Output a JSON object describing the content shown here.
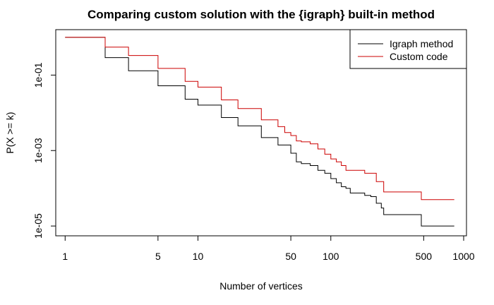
{
  "chart_data": {
    "type": "line",
    "title": "Comparing custom solution with the {igraph} built-in method",
    "xlabel": "Number of vertices",
    "ylabel": "P(X >= k)",
    "x_scale": "log",
    "y_scale": "log",
    "xlim": [
      0.85,
      1050
    ],
    "ylim": [
      5.5e-06,
      1.6
    ],
    "x_ticks": [
      {
        "value": 1,
        "label": "1"
      },
      {
        "value": 5,
        "label": "5"
      },
      {
        "value": 10,
        "label": "10"
      },
      {
        "value": 50,
        "label": "50"
      },
      {
        "value": 100,
        "label": "100"
      },
      {
        "value": 500,
        "label": "500"
      },
      {
        "value": 1000,
        "label": "1000"
      }
    ],
    "y_ticks": [
      {
        "value": 0.1,
        "label": "1e-01"
      },
      {
        "value": 0.001,
        "label": "1e-03"
      },
      {
        "value": 1e-05,
        "label": "1e-05"
      }
    ],
    "legend_position": "top-right",
    "grid": false,
    "series": [
      {
        "name": "Igraph method",
        "color": "#000000",
        "step": true,
        "points": [
          [
            1,
            1.0
          ],
          [
            2,
            0.29
          ],
          [
            3,
            0.13
          ],
          [
            5,
            0.052
          ],
          [
            8,
            0.023
          ],
          [
            10,
            0.016
          ],
          [
            15,
            0.0075
          ],
          [
            20,
            0.0045
          ],
          [
            30,
            0.0022
          ],
          [
            40,
            0.0014
          ],
          [
            50,
            0.00085
          ],
          [
            55,
            0.0005
          ],
          [
            60,
            0.00045
          ],
          [
            70,
            0.0004
          ],
          [
            80,
            0.0003
          ],
          [
            90,
            0.00025
          ],
          [
            100,
            0.00018
          ],
          [
            110,
            0.00014
          ],
          [
            120,
            0.00011
          ],
          [
            130,
            0.0001
          ],
          [
            140,
            7.5e-05
          ],
          [
            180,
            6.5e-05
          ],
          [
            200,
            6e-05
          ],
          [
            220,
            4e-05
          ],
          [
            240,
            3e-05
          ],
          [
            250,
            2e-05
          ],
          [
            480,
            1e-05
          ],
          [
            850,
            1e-05
          ]
        ]
      },
      {
        "name": "Custom code",
        "color": "#cc0000",
        "step": true,
        "points": [
          [
            1,
            1.0
          ],
          [
            2,
            0.55
          ],
          [
            3,
            0.33
          ],
          [
            5,
            0.15
          ],
          [
            8,
            0.068
          ],
          [
            10,
            0.048
          ],
          [
            15,
            0.022
          ],
          [
            20,
            0.013
          ],
          [
            30,
            0.0065
          ],
          [
            40,
            0.0043
          ],
          [
            45,
            0.003
          ],
          [
            50,
            0.0025
          ],
          [
            55,
            0.0018
          ],
          [
            60,
            0.0017
          ],
          [
            70,
            0.0015
          ],
          [
            80,
            0.0011
          ],
          [
            90,
            0.0008
          ],
          [
            100,
            0.0006
          ],
          [
            110,
            0.0005
          ],
          [
            120,
            0.0004
          ],
          [
            130,
            0.0003
          ],
          [
            180,
            0.00025
          ],
          [
            220,
            0.00015
          ],
          [
            250,
            8e-05
          ],
          [
            480,
            5e-05
          ],
          [
            850,
            5e-05
          ]
        ]
      }
    ]
  }
}
